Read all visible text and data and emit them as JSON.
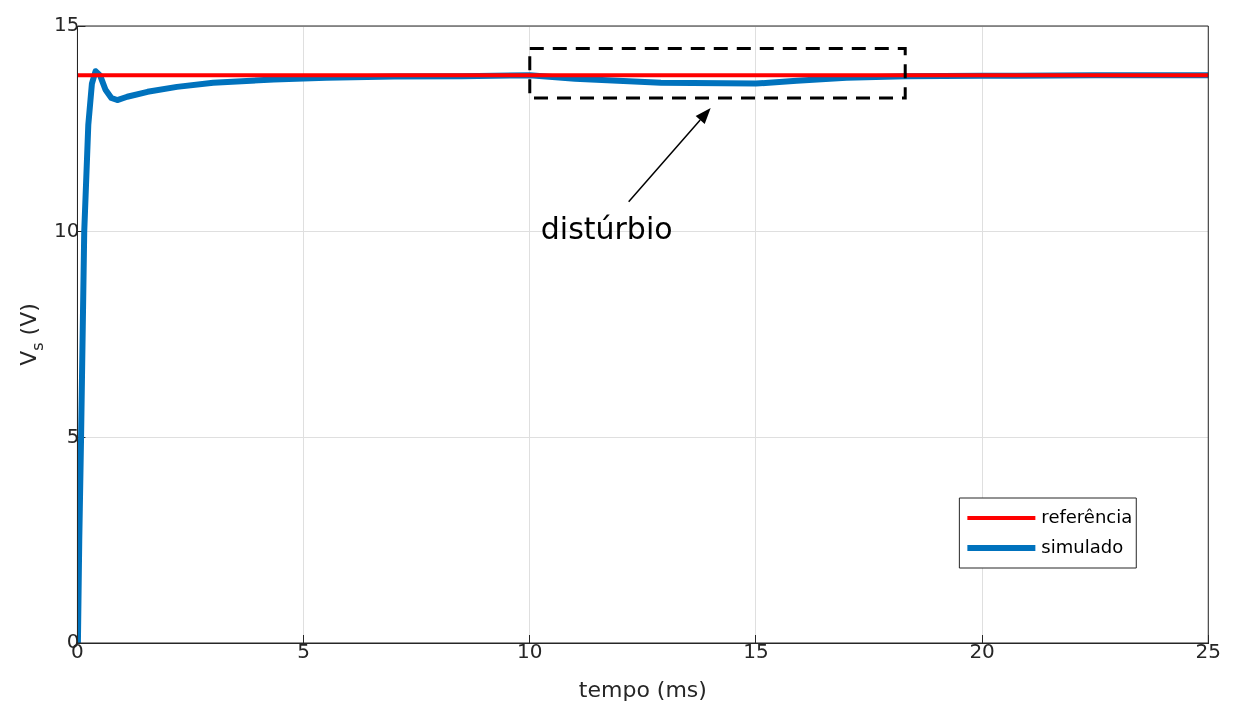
{
  "chart_data": {
    "type": "line",
    "xlabel": "tempo (ms)",
    "ylabel": "V$_{s}$ (V)",
    "xlim": [
      0,
      25
    ],
    "ylim": [
      0,
      15
    ],
    "xticks": [
      0,
      5,
      10,
      15,
      20,
      25
    ],
    "yticks": [
      0,
      5,
      10,
      15
    ],
    "grid": true,
    "legend": "bottom right",
    "marker": "none",
    "line_style": "solid",
    "annotations": [
      "distúrbio"
    ],
    "series": [
      {
        "name": "referência",
        "color": "#ff0000",
        "x": [
          0,
          25
        ],
        "values": [
          13.8,
          13.8
        ]
      },
      {
        "name": "simulado",
        "color": "#0072bd",
        "x": [
          0.01,
          0.04,
          0.08,
          0.15,
          0.24,
          0.32,
          0.4,
          0.5,
          0.62,
          0.75,
          0.88,
          1.1,
          1.55,
          2.2,
          3,
          4.34,
          5.5,
          7,
          8.5,
          10,
          11,
          12.9,
          15,
          15.9,
          17,
          18.3,
          20,
          22.5,
          25
        ],
        "values": [
          0,
          2.5,
          5,
          10,
          12.6,
          13.6,
          13.9,
          13.8,
          13.45,
          13.25,
          13.2,
          13.28,
          13.4,
          13.52,
          13.62,
          13.7,
          13.74,
          13.77,
          13.78,
          13.8,
          13.72,
          13.62,
          13.6,
          13.67,
          13.74,
          13.78,
          13.79,
          13.8,
          13.8
        ]
      }
    ]
  }
}
